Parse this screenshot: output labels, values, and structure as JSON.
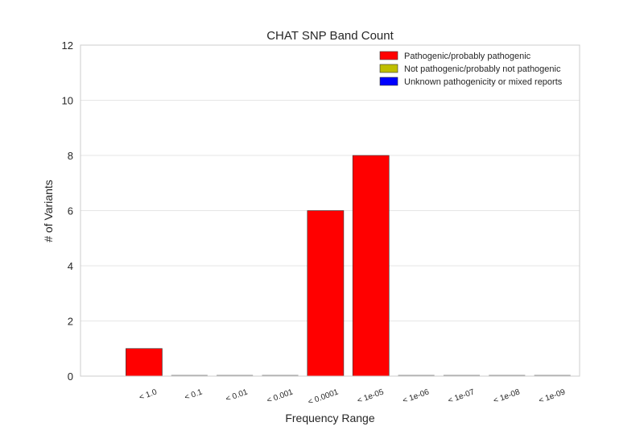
{
  "chart_data": {
    "type": "bar",
    "title": "CHAT SNP Band Count",
    "xlabel": "Frequency Range",
    "ylabel": "# of Variants",
    "ylim": [
      0,
      12
    ],
    "yticks": [
      0,
      2,
      4,
      6,
      8,
      10,
      12
    ],
    "grid": "horizontal",
    "legend_position": "top-right",
    "categories": [
      "< 1.0",
      "< 0.1",
      "< 0.01",
      "< 0.001",
      "< 0.0001",
      "< 1e-05",
      "< 1e-06",
      "< 1e-07",
      "< 1e-08",
      "< 1e-09"
    ],
    "series": [
      {
        "name": "Pathogenic/probably pathogenic",
        "color": "#ff0000",
        "values": [
          1,
          0,
          0,
          0,
          6,
          8,
          0,
          0,
          0,
          0
        ]
      },
      {
        "name": "Not pathogenic/probably not pathogenic",
        "color": "#bfbf00",
        "values": [
          0,
          0,
          0,
          0,
          0,
          0,
          0,
          0,
          0,
          0
        ]
      },
      {
        "name": "Unknown pathogenicity or mixed reports",
        "color": "#0000ff",
        "values": [
          0,
          0,
          0,
          0,
          0,
          0,
          0,
          0,
          0,
          0
        ]
      }
    ]
  }
}
